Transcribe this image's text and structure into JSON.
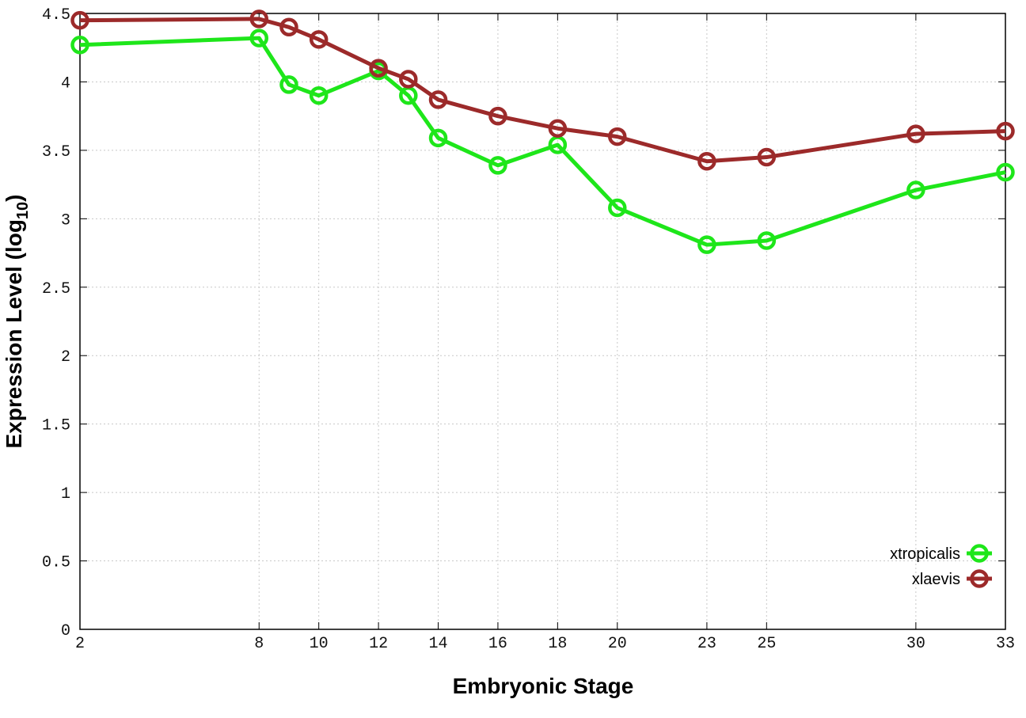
{
  "chart_data": {
    "type": "line",
    "title": "",
    "xlabel": "Embryonic Stage",
    "ylabel_prefix": "Expression Level (log",
    "ylabel_subscript": "10",
    "ylabel_suffix": ")",
    "xlim": [
      2,
      33
    ],
    "ylim": [
      0,
      4.5
    ],
    "xticks": [
      2,
      8,
      10,
      12,
      14,
      16,
      18,
      20,
      23,
      25,
      30,
      33
    ],
    "yticks": [
      0,
      0.5,
      1,
      1.5,
      2,
      2.5,
      3,
      3.5,
      4,
      4.5
    ],
    "ytick_labels": [
      "0",
      "0.5",
      "1",
      "1.5",
      "2",
      "2.5",
      "3",
      "3.5",
      "4",
      "4.5"
    ],
    "grid": true,
    "legend_position": "bottom-right",
    "x": [
      2,
      8,
      9,
      10,
      12,
      13,
      14,
      16,
      18,
      20,
      23,
      25,
      30,
      33
    ],
    "series": [
      {
        "name": "xtropicalis",
        "color": "#1ee61a",
        "values": [
          4.27,
          4.32,
          3.98,
          3.9,
          4.08,
          3.9,
          3.59,
          3.39,
          3.54,
          3.08,
          2.81,
          2.84,
          3.21,
          3.34
        ]
      },
      {
        "name": "xlaevis",
        "color": "#9c2a2a",
        "values": [
          4.45,
          4.46,
          4.4,
          4.31,
          4.1,
          4.02,
          3.87,
          3.75,
          3.66,
          3.6,
          3.42,
          3.45,
          3.62,
          3.64
        ]
      }
    ]
  }
}
